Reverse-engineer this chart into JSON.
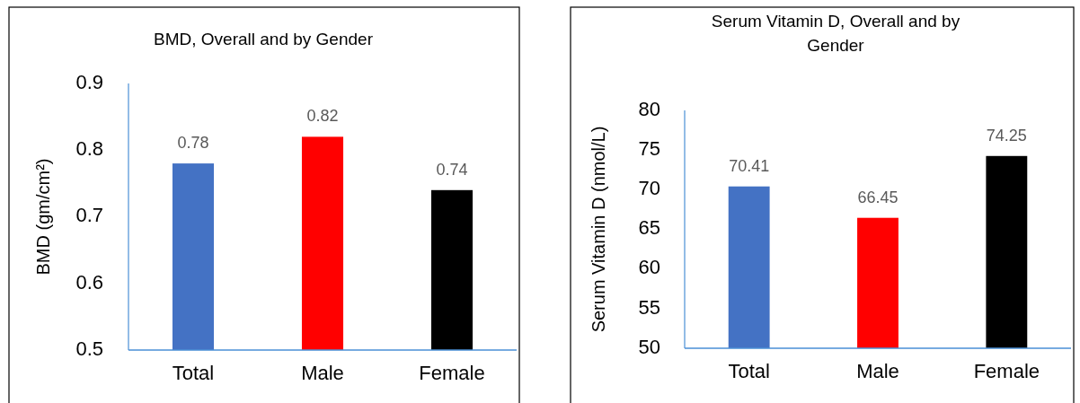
{
  "chart_data": [
    {
      "type": "bar",
      "title": "BMD, Overall and by Gender",
      "ylabel": "BMD (gm/cm²)",
      "categories": [
        "Total",
        "Male",
        "Female"
      ],
      "values": [
        0.78,
        0.82,
        0.74
      ],
      "colors": [
        "#4472c4",
        "#ff0000",
        "#000000"
      ],
      "ylim": [
        0.5,
        0.9
      ],
      "yticks": [
        0.5,
        0.6,
        0.7,
        0.8,
        0.9
      ],
      "data_labels": true,
      "grid": false
    },
    {
      "type": "bar",
      "title": "Serum Vitamin D, Overall and by Gender",
      "ylabel": "Serum Vitamin D (nmol/L)",
      "categories": [
        "Total",
        "Male",
        "Female"
      ],
      "values": [
        70.41,
        66.45,
        74.25
      ],
      "colors": [
        "#4472c4",
        "#ff0000",
        "#000000"
      ],
      "ylim": [
        50,
        80
      ],
      "yticks": [
        50,
        55,
        60,
        65,
        70,
        75,
        80
      ],
      "data_labels": true,
      "grid": false
    }
  ]
}
